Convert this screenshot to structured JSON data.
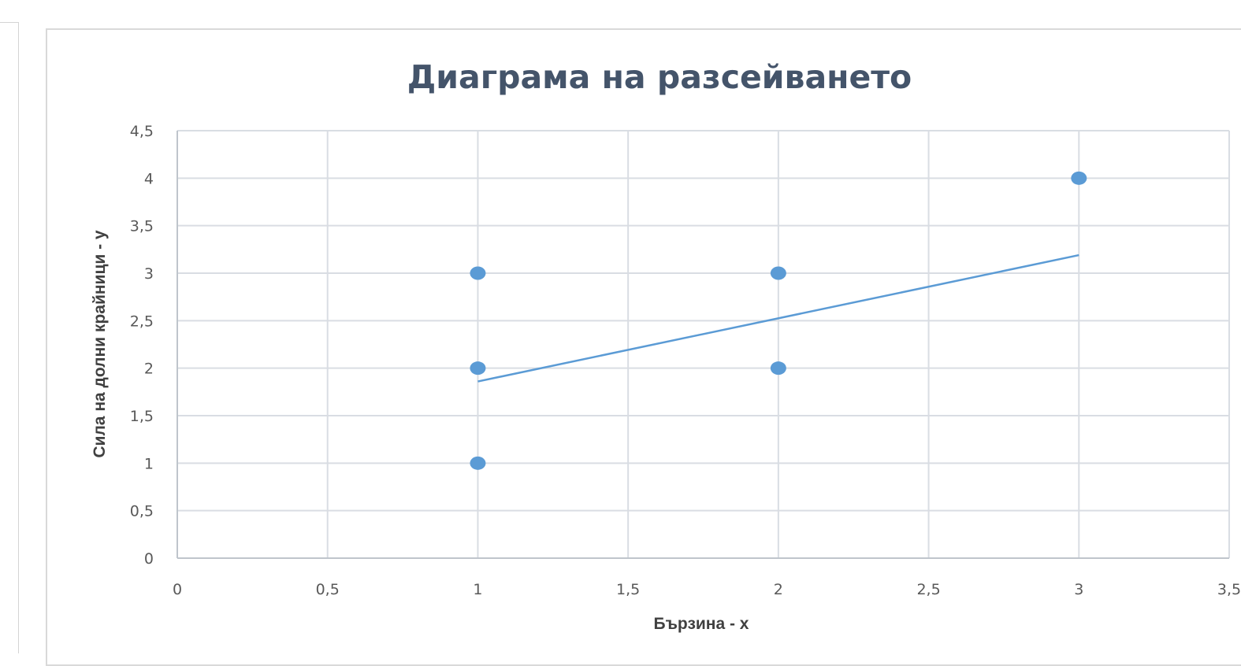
{
  "chart_data": {
    "type": "scatter",
    "title": "Диаграма на разсейването",
    "xlabel": "Бързина - x",
    "ylabel": "Сила на долни крайници - y",
    "xlim": [
      0,
      3.5
    ],
    "ylim": [
      0,
      4.5
    ],
    "x_ticks": [
      "0",
      "0,5",
      "1",
      "1,5",
      "2",
      "2,5",
      "3",
      "3,5"
    ],
    "y_ticks": [
      "0",
      "0,5",
      "1",
      "1,5",
      "2",
      "2,5",
      "3",
      "3,5",
      "4",
      "4,5"
    ],
    "points": [
      {
        "x": 1,
        "y": 3
      },
      {
        "x": 1,
        "y": 2
      },
      {
        "x": 1,
        "y": 1
      },
      {
        "x": 2,
        "y": 3
      },
      {
        "x": 2,
        "y": 2
      },
      {
        "x": 3,
        "y": 4
      }
    ],
    "trendline": {
      "type": "linear",
      "x_start": 1,
      "y_start": 1.86,
      "x_end": 3,
      "y_end": 3.19
    },
    "grid": true,
    "legend": "none",
    "colors": {
      "series": "#5b9bd5",
      "grid": "#d9dde3",
      "axis": "#bfc5cc",
      "title": "#44546a"
    }
  }
}
